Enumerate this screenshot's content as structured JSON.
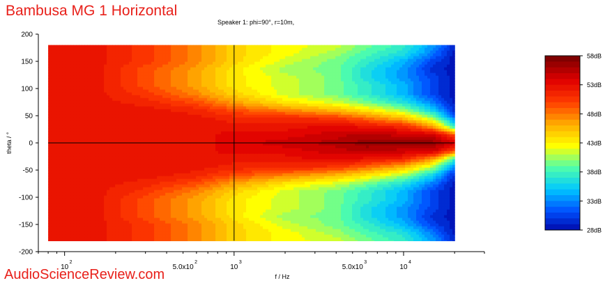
{
  "header": {
    "title": "Bambusa MG 1 Horizontal",
    "subtitle": "Speaker 1: phi=90°, r=10m,"
  },
  "watermark": "AudioScienceReview.com",
  "chart_data": {
    "type": "heatmap",
    "xlabel": "f / Hz",
    "ylabel": "theta / °",
    "xscale": "log",
    "xlim": [
      70,
      30000
    ],
    "ylim": [
      -200,
      200
    ],
    "data_x_range": [
      80,
      20000
    ],
    "data_y_range": [
      -180,
      180
    ],
    "x_tick_labels": [
      {
        "value": 100,
        "label": "10",
        "sup": "2"
      },
      {
        "value": 500,
        "label": "5.0x10",
        "sup": "2"
      },
      {
        "value": 1000,
        "label": "10",
        "sup": "3"
      },
      {
        "value": 5000,
        "label": "5.0x10",
        "sup": "3"
      },
      {
        "value": 10000,
        "label": "10",
        "sup": "4"
      }
    ],
    "y_ticks": [
      200,
      150,
      100,
      50,
      0,
      -50,
      -100,
      -150,
      -200
    ],
    "crosshair": {
      "x": 1000,
      "y": 0
    },
    "colorbar": {
      "min": 28,
      "max": 58,
      "tick_labels": [
        "58dB",
        "53dB",
        "48dB",
        "43dB",
        "38dB",
        "33dB",
        "28dB"
      ],
      "colors": [
        "#00009f",
        "#0050ff",
        "#00c8ff",
        "#50ffaa",
        "#ffff00",
        "#ffaa00",
        "#ff3c00",
        "#e00000",
        "#800000"
      ]
    },
    "level_grid": {
      "freqs": [
        80,
        150,
        300,
        600,
        1000,
        2000,
        4000,
        6000,
        10000,
        15000,
        20000
      ],
      "angles": [
        0,
        15,
        30,
        45,
        60,
        75,
        90,
        105,
        120,
        135,
        150,
        165,
        180
      ],
      "levels_dB": [
        [
          53,
          53,
          53,
          53,
          54,
          55,
          56,
          57,
          57,
          57,
          55
        ],
        [
          53,
          53,
          53,
          53,
          54,
          54,
          55,
          56,
          55,
          55,
          50
        ],
        [
          53,
          53,
          53,
          53,
          53,
          53,
          54,
          53,
          52,
          47,
          38
        ],
        [
          53,
          53,
          53,
          53,
          52,
          52,
          51,
          49,
          46,
          41,
          33
        ],
        [
          53,
          53,
          53,
          52,
          50,
          48,
          46,
          44,
          41,
          36,
          30
        ],
        [
          53,
          53,
          52,
          50,
          47,
          44,
          42,
          40,
          37,
          33,
          29
        ],
        [
          53,
          53,
          51,
          48,
          45,
          42,
          40,
          38,
          35,
          31,
          29
        ],
        [
          53,
          53,
          50,
          47,
          44,
          42,
          40,
          38,
          35,
          31,
          29
        ],
        [
          53,
          53,
          50,
          47,
          44,
          42,
          40,
          37,
          34,
          31,
          29
        ],
        [
          53,
          53,
          50,
          47,
          44,
          41,
          40,
          37,
          34,
          30,
          29
        ],
        [
          53,
          53,
          51,
          48,
          45,
          42,
          40,
          38,
          35,
          31,
          29
        ],
        [
          53,
          53,
          51,
          48,
          45,
          43,
          41,
          39,
          37,
          33,
          29
        ],
        [
          53,
          53,
          51,
          48,
          45,
          43,
          42,
          40,
          38,
          34,
          30
        ]
      ]
    }
  }
}
